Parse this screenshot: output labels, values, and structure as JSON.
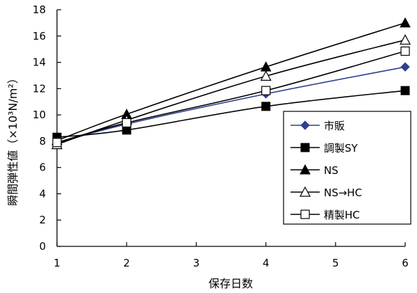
{
  "chart_data": {
    "type": "line",
    "title": "",
    "xlabel": "保存日数",
    "ylabel": "瞬間弾性値（×10³N/m²）",
    "x": [
      1,
      2,
      4,
      6
    ],
    "xticks": [
      "1",
      "2",
      "3",
      "4",
      "5",
      "6"
    ],
    "yticks": [
      "0",
      "2",
      "4",
      "6",
      "8",
      "10",
      "12",
      "14",
      "16",
      "18"
    ],
    "xlim": [
      1,
      6
    ],
    "ylim": [
      0,
      18
    ],
    "grid": false,
    "legend_position": "right",
    "series": [
      {
        "name": "市販",
        "marker": "diamond",
        "color": "#2F3F8F",
        "values": [
          7.85,
          9.3,
          11.6,
          13.65
        ]
      },
      {
        "name": "調製SY",
        "marker": "square-filled",
        "color": "#000000",
        "values": [
          8.3,
          8.85,
          10.65,
          11.85
        ]
      },
      {
        "name": "NS",
        "marker": "triangle-filled",
        "color": "#000000",
        "values": [
          8.05,
          10.05,
          13.65,
          17.0
        ]
      },
      {
        "name": "NS→HC",
        "marker": "triangle-open",
        "color": "#000000",
        "values": [
          7.75,
          9.6,
          12.95,
          15.7
        ]
      },
      {
        "name": "精製HC",
        "marker": "square-open",
        "color": "#000000",
        "values": [
          7.9,
          9.4,
          11.85,
          14.85
        ]
      }
    ]
  }
}
